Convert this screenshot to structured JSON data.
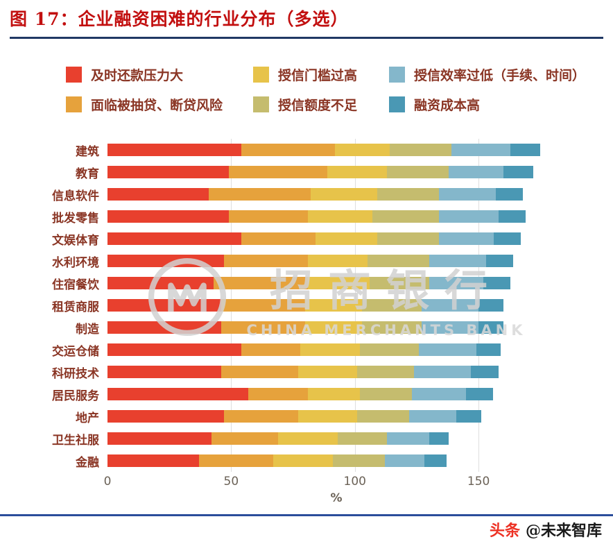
{
  "colors": {
    "title": "#c20f0f",
    "header_rule": "#203864",
    "footer_rule": "#2a4d9b",
    "brand_red": "#ed3124",
    "label_text": "#8a3524",
    "gridline": "#dedede"
  },
  "chart_data": {
    "type": "bar",
    "orientation": "horizontal",
    "stacked": true,
    "title": "图 17：企业融资困难的行业分布（多选）",
    "categories": [
      "建筑",
      "教育",
      "信息软件",
      "批发零售",
      "文娱体育",
      "水利环境",
      "住宿餐饮",
      "租赁商服",
      "制造",
      "交运仓储",
      "科研技术",
      "居民服务",
      "地产",
      "卫生社服",
      "金融"
    ],
    "series": [
      {
        "name": "及时还款压力大",
        "color": "#e8402e",
        "values": [
          54,
          49,
          41,
          49,
          54,
          47,
          43,
          46,
          46,
          54,
          46,
          57,
          47,
          42,
          37
        ]
      },
      {
        "name": "面临被抽贷、断贷风险",
        "color": "#e6a23c",
        "values": [
          38,
          40,
          41,
          32,
          30,
          34,
          38,
          34,
          34,
          24,
          31,
          24,
          30,
          27,
          30
        ]
      },
      {
        "name": "授信门槛过高",
        "color": "#e7c34a",
        "values": [
          22,
          24,
          27,
          26,
          25,
          24,
          25,
          23,
          23,
          24,
          24,
          21,
          24,
          24,
          24
        ]
      },
      {
        "name": "授信额度不足",
        "color": "#c5bc6e",
        "values": [
          25,
          25,
          25,
          27,
          25,
          25,
          24,
          24,
          24,
          24,
          23,
          21,
          21,
          20,
          21
        ]
      },
      {
        "name": "授信效率过低（手续、时间）",
        "color": "#84b7cb",
        "values": [
          24,
          22,
          23,
          24,
          22,
          23,
          22,
          23,
          23,
          23,
          23,
          22,
          19,
          17,
          16
        ]
      },
      {
        "name": "融资成本高",
        "color": "#4a98b4",
        "values": [
          12,
          12,
          11,
          11,
          11,
          11,
          11,
          10,
          10,
          10,
          11,
          11,
          10,
          8,
          9
        ]
      }
    ],
    "xlabel": "%",
    "xticks": [
      0,
      50,
      100,
      150
    ],
    "xlim": [
      0,
      185
    ],
    "grid": "vertical-only",
    "legend_position": "top"
  },
  "legend": {
    "order": [
      0,
      2,
      4,
      1,
      3,
      5
    ]
  },
  "watermark": {
    "cn": "招商银行",
    "en": "CHINA MERCHANTS BANK"
  },
  "footer": {
    "brand": "头条",
    "credit": "@未来智库"
  }
}
